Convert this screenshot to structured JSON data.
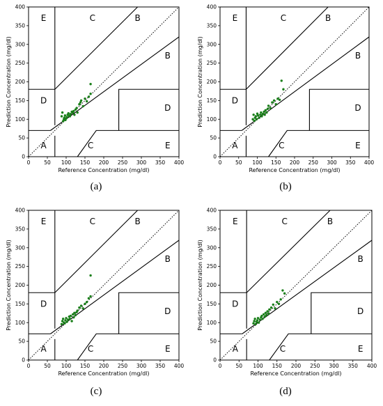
{
  "chart_data": [
    {
      "type": "scatter",
      "panel_label": "(a)",
      "xlabel": "Reference Concentration (mg/dl)",
      "ylabel": "Prediction Concentration (mg/dl)",
      "xlim": [
        0,
        400
      ],
      "ylim": [
        0,
        400
      ],
      "xticks": [
        "0",
        "50",
        "100",
        "150",
        "200",
        "250",
        "300",
        "350",
        "400"
      ],
      "yticks": [
        "0",
        "50",
        "100",
        "150",
        "200",
        "250",
        "300",
        "350",
        "400"
      ],
      "grid": false,
      "point_color": "#1a7f1a",
      "regions": [
        "A",
        "B",
        "B",
        "C",
        "C",
        "D",
        "D",
        "E",
        "E"
      ],
      "x": [
        88,
        90,
        92,
        94,
        95,
        97,
        98,
        100,
        102,
        104,
        106,
        108,
        110,
        112,
        115,
        118,
        120,
        122,
        125,
        128,
        130,
        135,
        138,
        140,
        145,
        150,
        155,
        160,
        165,
        165
      ],
      "y": [
        108,
        118,
        95,
        100,
        104,
        110,
        98,
        102,
        106,
        112,
        116,
        110,
        108,
        114,
        120,
        118,
        122,
        112,
        126,
        130,
        118,
        140,
        145,
        150,
        135,
        155,
        148,
        160,
        168,
        194
      ]
    },
    {
      "type": "scatter",
      "panel_label": "(b)",
      "xlabel": "Reference Concentration (mg/dl)",
      "ylabel": "Prediction Concentration (mg/dl)",
      "xlim": [
        0,
        400
      ],
      "ylim": [
        0,
        400
      ],
      "xticks": [
        "0",
        "50",
        "100",
        "150",
        "200",
        "250",
        "300",
        "350",
        "400"
      ],
      "yticks": [
        "0",
        "50",
        "100",
        "150",
        "200",
        "250",
        "300",
        "350",
        "400"
      ],
      "grid": false,
      "point_color": "#1a7f1a",
      "regions": [
        "A",
        "B",
        "B",
        "C",
        "C",
        "D",
        "D",
        "E",
        "E"
      ],
      "x": [
        88,
        90,
        92,
        94,
        96,
        98,
        100,
        102,
        105,
        108,
        110,
        112,
        115,
        118,
        120,
        122,
        125,
        128,
        130,
        135,
        140,
        145,
        150,
        155,
        160,
        165,
        170
      ],
      "y": [
        100,
        112,
        96,
        104,
        108,
        100,
        115,
        110,
        104,
        112,
        118,
        108,
        114,
        120,
        112,
        124,
        118,
        128,
        136,
        130,
        145,
        150,
        140,
        155,
        152,
        203,
        180
      ]
    },
    {
      "type": "scatter",
      "panel_label": "(c)",
      "xlabel": "Reference Concentration (mg/dl)",
      "ylabel": "Prediction Concentration (mg/dl)",
      "xlim": [
        0,
        400
      ],
      "ylim": [
        0,
        400
      ],
      "xticks": [
        "0",
        "50",
        "100",
        "150",
        "200",
        "250",
        "300",
        "350",
        "400"
      ],
      "yticks": [
        "0",
        "50",
        "100",
        "150",
        "200",
        "250",
        "300",
        "350",
        "400"
      ],
      "grid": false,
      "point_color": "#1a7f1a",
      "regions": [
        "A",
        "B",
        "B",
        "C",
        "C",
        "D",
        "D",
        "E",
        "E"
      ],
      "x": [
        88,
        90,
        92,
        94,
        96,
        98,
        100,
        102,
        105,
        108,
        110,
        112,
        115,
        118,
        120,
        122,
        125,
        128,
        130,
        135,
        140,
        145,
        150,
        155,
        160,
        165,
        165
      ],
      "y": [
        96,
        104,
        110,
        100,
        98,
        106,
        112,
        102,
        108,
        116,
        110,
        118,
        104,
        122,
        114,
        126,
        120,
        128,
        132,
        140,
        145,
        138,
        150,
        155,
        165,
        170,
        226
      ]
    },
    {
      "type": "scatter",
      "panel_label": "(d)",
      "xlabel": "Reference Concentration (mg/dl)",
      "ylabel": "Prediction Concentration (mg/dl)",
      "xlim": [
        0,
        400
      ],
      "ylim": [
        0,
        400
      ],
      "xticks": [
        "0",
        "50",
        "100",
        "150",
        "200",
        "250",
        "300",
        "350",
        "400"
      ],
      "yticks": [
        "0",
        "50",
        "100",
        "150",
        "200",
        "250",
        "300",
        "350",
        "400"
      ],
      "grid": false,
      "point_color": "#1a7f1a",
      "regions": [
        "A",
        "B",
        "B",
        "C",
        "C",
        "D",
        "D",
        "E",
        "E"
      ],
      "x": [
        88,
        90,
        92,
        94,
        96,
        98,
        100,
        102,
        105,
        108,
        110,
        112,
        115,
        118,
        120,
        122,
        125,
        128,
        130,
        135,
        140,
        145,
        150,
        155,
        160,
        165,
        170
      ],
      "y": [
        98,
        104,
        110,
        96,
        102,
        106,
        112,
        100,
        108,
        114,
        118,
        110,
        122,
        116,
        126,
        120,
        130,
        124,
        135,
        140,
        148,
        138,
        155,
        150,
        162,
        186,
        178
      ]
    }
  ]
}
